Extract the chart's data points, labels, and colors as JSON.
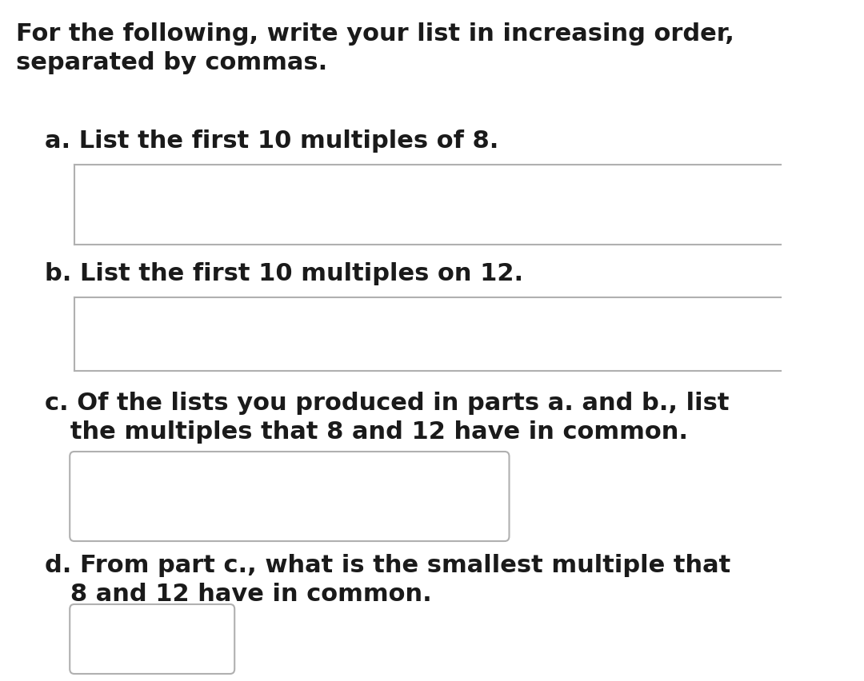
{
  "background_color": "#ffffff",
  "text_color": "#1a1a1a",
  "header_text_line1": "For the following, write your list in increasing order,",
  "header_text_line2": "separated by commas.",
  "label_a": "a. List the first 10 multiples of 8.",
  "label_b": "b. List the first 10 multiples on 12.",
  "label_c_line1": "c. Of the lists you produced in parts a. and b., list",
  "label_c_line2": "   the multiples that 8 and 12 have in common.",
  "label_d_line1": "d. From part c., what is the smallest multiple that",
  "label_d_line2": "   8 and 12 have in common.",
  "header_fontsize": 22,
  "label_fontsize": 22,
  "box_edge_color": "#b0b0b0",
  "line_color": "#b0b0b0",
  "line_width": 1.5
}
